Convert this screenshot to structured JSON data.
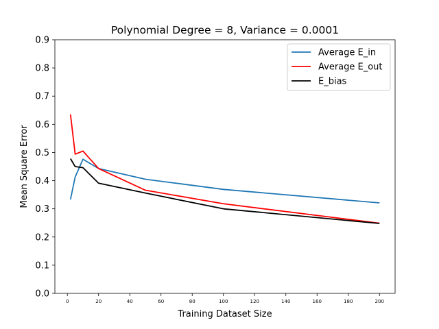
{
  "chart_data": {
    "type": "line",
    "title": "Polynomial Degree = 8, Variance = 0.0001",
    "xlabel": "Training Dataset Size",
    "ylabel": "Mean Square Error",
    "xlim": [
      -8,
      210
    ],
    "ylim": [
      0,
      0.9
    ],
    "xticks": [
      0,
      20,
      40,
      60,
      80,
      100,
      120,
      140,
      160,
      180,
      200
    ],
    "yticks": [
      0.0,
      0.1,
      0.2,
      0.3,
      0.4,
      0.5,
      0.6,
      0.7,
      0.8,
      0.9
    ],
    "xtick_labels": [
      "0",
      "20",
      "40",
      "60",
      "80",
      "100",
      "120",
      "140",
      "160",
      "180",
      "200"
    ],
    "ytick_labels": [
      "0.0",
      "0.1",
      "0.2",
      "0.3",
      "0.4",
      "0.5",
      "0.6",
      "0.7",
      "0.8",
      "0.9"
    ],
    "grid": false,
    "legend_position": "top-right",
    "series": [
      {
        "name": "Average E_in",
        "color": "#1f77b4",
        "x": [
          2,
          5,
          10,
          20,
          50,
          100,
          200
        ],
        "values": [
          0.333,
          0.413,
          0.476,
          0.443,
          0.405,
          0.369,
          0.321
        ]
      },
      {
        "name": "Average E_out",
        "color": "#ff0000",
        "x": [
          2,
          5,
          10,
          20,
          50,
          100,
          200
        ],
        "values": [
          0.635,
          0.494,
          0.505,
          0.443,
          0.366,
          0.318,
          0.249
        ]
      },
      {
        "name": "E_bias",
        "color": "#000000",
        "x": [
          2,
          5,
          10,
          20,
          50,
          100,
          200
        ],
        "values": [
          0.478,
          0.45,
          0.446,
          0.391,
          0.356,
          0.3,
          0.248
        ]
      }
    ]
  }
}
